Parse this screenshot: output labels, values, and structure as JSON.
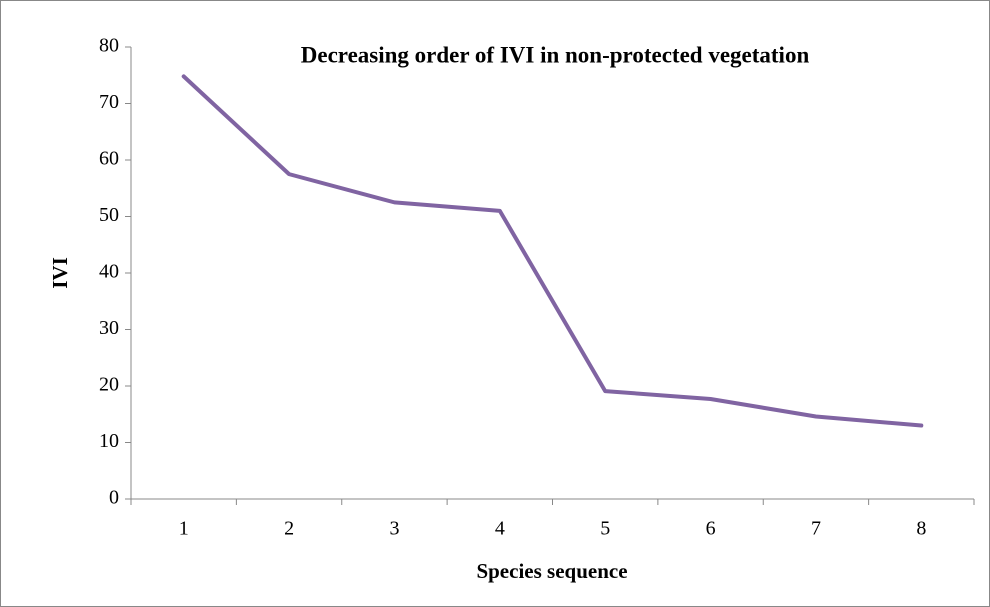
{
  "chart_data": {
    "type": "line",
    "title": "Decreasing order of IVI in non-protected vegetation",
    "x_label": "Species sequence",
    "y_label": "IVI",
    "categories": [
      "1",
      "2",
      "3",
      "4",
      "5",
      "6",
      "7",
      "8"
    ],
    "values": [
      74.8,
      57.5,
      52.5,
      51,
      19.1,
      17.7,
      14.6,
      13
    ],
    "color": "#8064a2",
    "ylim": [
      0,
      80
    ],
    "yticks": [
      0,
      10,
      20,
      30,
      40,
      50,
      60,
      70,
      80
    ],
    "grid": false
  }
}
